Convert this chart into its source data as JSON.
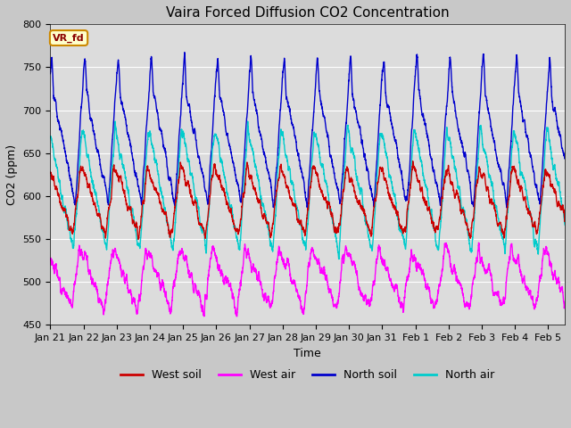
{
  "title": "Vaira Forced Diffusion CO2 Concentration",
  "xlabel": "Time",
  "ylabel": "CO2 (ppm)",
  "ylim": [
    450,
    800
  ],
  "xlim_start": 0,
  "xlim_end": 15.5,
  "fig_bg": "#c8c8c8",
  "plot_bg": "#dcdcdc",
  "legend_label": "VR_fd",
  "legend_fg": "#8b0000",
  "legend_bg": "#ffffcc",
  "legend_edge": "#cc8800",
  "series_order": [
    "north_soil",
    "north_air",
    "west_soil",
    "west_air"
  ],
  "series": {
    "west_soil": {
      "color": "#cc0000",
      "label": "West soil",
      "lw": 1.0
    },
    "west_air": {
      "color": "#ff00ff",
      "label": "West air",
      "lw": 1.0
    },
    "north_soil": {
      "color": "#0000cc",
      "label": "North soil",
      "lw": 1.0
    },
    "north_air": {
      "color": "#00cccc",
      "label": "North air",
      "lw": 1.0
    }
  },
  "tick_labels": [
    "Jan 21",
    "Jan 22",
    "Jan 23",
    "Jan 24",
    "Jan 25",
    "Jan 26",
    "Jan 27",
    "Jan 28",
    "Jan 29",
    "Jan 30",
    "Jan 31",
    "Feb 1",
    "Feb 2",
    "Feb 3",
    "Feb 4",
    "Feb 5"
  ],
  "n_days": 16,
  "pts_per_day": 288,
  "title_fontsize": 11,
  "axis_label_fontsize": 9,
  "tick_fontsize": 8
}
